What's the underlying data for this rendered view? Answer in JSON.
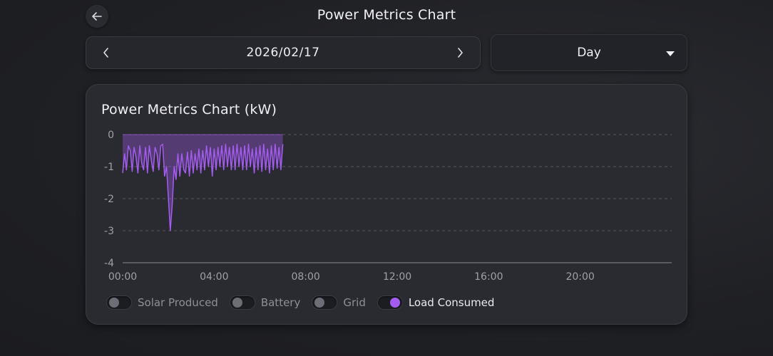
{
  "header": {
    "title": "Power Metrics Chart",
    "back_icon": "arrow-left-icon"
  },
  "date_nav": {
    "date": "2026/02/17",
    "prev_icon": "chevron-left-icon",
    "next_icon": "chevron-right-icon"
  },
  "range_select": {
    "value": "Day",
    "icon": "caret-down-icon"
  },
  "chart": {
    "title": "Power Metrics Chart (kW)",
    "legend": [
      {
        "label": "Solar Produced",
        "enabled": false
      },
      {
        "label": "Battery",
        "enabled": false
      },
      {
        "label": "Grid",
        "enabled": false
      },
      {
        "label": "Load Consumed",
        "enabled": true
      }
    ]
  },
  "chart_data": {
    "type": "area",
    "title": "Power Metrics Chart (kW)",
    "xlabel": "",
    "ylabel": "",
    "ylim": [
      -4,
      0
    ],
    "xlim": [
      "00:00",
      "24:00"
    ],
    "y_ticks": [
      "0",
      "-1",
      "-2",
      "-3",
      "-4"
    ],
    "x_ticks": [
      "00:00",
      "04:00",
      "08:00",
      "12:00",
      "16:00",
      "20:00"
    ],
    "grid": true,
    "color": "#a45bf0",
    "series": [
      {
        "name": "Load Consumed",
        "x": [
          "00:00",
          "00:05",
          "00:10",
          "00:15",
          "00:20",
          "00:25",
          "00:30",
          "00:35",
          "00:40",
          "00:45",
          "00:50",
          "00:55",
          "01:00",
          "01:05",
          "01:10",
          "01:15",
          "01:20",
          "01:25",
          "01:30",
          "01:35",
          "01:40",
          "01:45",
          "01:50",
          "01:55",
          "02:00",
          "02:05",
          "02:10",
          "02:15",
          "02:20",
          "02:25",
          "02:30",
          "02:35",
          "02:40",
          "02:45",
          "02:50",
          "02:55",
          "03:00",
          "03:05",
          "03:10",
          "03:15",
          "03:20",
          "03:25",
          "03:30",
          "03:35",
          "03:40",
          "03:45",
          "03:50",
          "03:55",
          "04:00",
          "04:05",
          "04:10",
          "04:15",
          "04:20",
          "04:25",
          "04:30",
          "04:35",
          "04:40",
          "04:45",
          "04:50",
          "04:55",
          "05:00",
          "05:05",
          "05:10",
          "05:15",
          "05:20",
          "05:25",
          "05:30",
          "05:35",
          "05:40",
          "05:45",
          "05:50",
          "05:55",
          "06:00",
          "06:05",
          "06:10",
          "06:15",
          "06:20",
          "06:25",
          "06:30",
          "06:35",
          "06:40",
          "06:45",
          "06:50",
          "06:55",
          "07:00"
        ],
        "values": [
          -1.2,
          -0.6,
          -1.1,
          -0.35,
          -0.5,
          -1.15,
          -0.4,
          -0.7,
          -1.2,
          -0.35,
          -0.9,
          -1.1,
          -0.4,
          -1.2,
          -0.35,
          -0.8,
          -1.15,
          -0.4,
          -0.6,
          -1.1,
          -0.35,
          -0.3,
          -1.3,
          -1.0,
          -2.0,
          -3.0,
          -2.2,
          -1.0,
          -1.4,
          -0.6,
          -1.3,
          -0.6,
          -1.1,
          -1.2,
          -0.55,
          -1.3,
          -0.5,
          -1.2,
          -0.6,
          -1.1,
          -0.45,
          -1.2,
          -0.5,
          -1.1,
          -0.35,
          -1.0,
          -0.4,
          -1.3,
          -0.45,
          -1.1,
          -0.4,
          -1.0,
          -0.35,
          -1.1,
          -0.3,
          -1.0,
          -0.4,
          -1.1,
          -0.35,
          -1.1,
          -0.3,
          -1.0,
          -0.4,
          -1.1,
          -0.35,
          -1.1,
          -0.3,
          -1.0,
          -0.45,
          -1.2,
          -0.4,
          -1.1,
          -0.35,
          -1.15,
          -0.3,
          -1.1,
          -0.45,
          -1.2,
          -0.35,
          -1.1,
          -0.3,
          -1.05,
          -0.4,
          -1.1,
          -0.3
        ]
      }
    ]
  }
}
